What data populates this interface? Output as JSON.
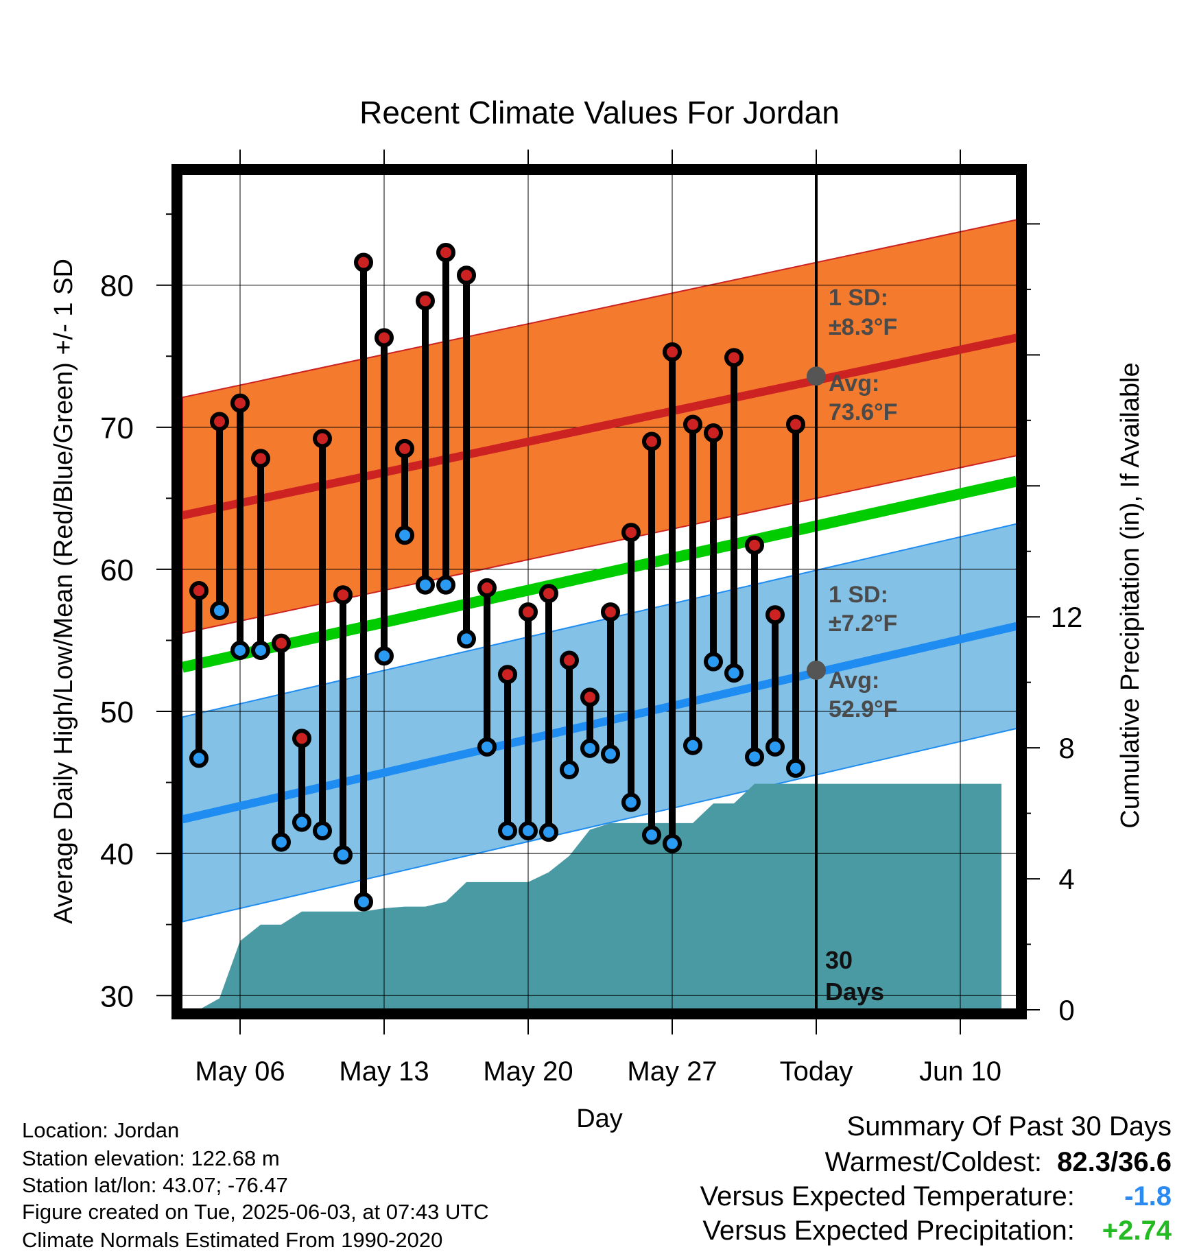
{
  "chart_data": {
    "type": "range",
    "title": "Recent Climate Values For Jordan",
    "xlabel": "Day",
    "ylabel": "Average Daily High/Low/Mean (Red/Blue/Green) +/- 1 SD",
    "y2label": "Cumulative Precipitation (in), If Available",
    "xticks": [
      "May 06",
      "May 13",
      "May 20",
      "May 27",
      "Today",
      "Jun 10"
    ],
    "yticks": [
      30,
      40,
      50,
      60,
      70,
      80
    ],
    "y2ticks": [
      0,
      4,
      8,
      12
    ],
    "ylim": [
      29,
      88
    ],
    "y2lim": [
      0,
      25.6
    ],
    "days": [
      "May 04",
      "May 05",
      "May 06",
      "May 07",
      "May 08",
      "May 09",
      "May 10",
      "May 11",
      "May 12",
      "May 13",
      "May 14",
      "May 15",
      "May 16",
      "May 17",
      "May 18",
      "May 19",
      "May 20",
      "May 21",
      "May 22",
      "May 23",
      "May 24",
      "May 25",
      "May 26",
      "May 27",
      "May 28",
      "May 29",
      "May 30",
      "May 31",
      "Jun 01",
      "Jun 02"
    ],
    "highs": [
      58.5,
      70.4,
      71.7,
      67.8,
      54.8,
      48.1,
      69.2,
      58.2,
      81.6,
      76.3,
      68.5,
      78.9,
      82.3,
      80.7,
      58.7,
      52.6,
      57.0,
      58.3,
      53.6,
      51.0,
      57.0,
      62.6,
      69.0,
      75.3,
      70.2,
      69.6,
      74.9,
      61.7,
      56.8,
      70.2
    ],
    "lows": [
      46.7,
      57.1,
      54.3,
      54.3,
      40.8,
      42.2,
      41.6,
      39.9,
      36.6,
      53.9,
      62.4,
      58.9,
      58.9,
      55.1,
      47.5,
      41.6,
      41.6,
      41.5,
      45.9,
      47.4,
      47.0,
      43.6,
      41.3,
      40.7,
      47.6,
      53.5,
      52.7,
      46.8,
      47.5,
      46.0
    ],
    "normal_high_avg": {
      "start": 63.8,
      "end": 76.3
    },
    "normal_high_sd": 8.3,
    "normal_low_avg": {
      "start": 42.4,
      "end": 56.0
    },
    "normal_low_sd": 7.2,
    "normal_mean": {
      "start": 53.1,
      "end": 66.2
    },
    "precip_cumulative": {
      "days": [
        "May 03",
        "May 04",
        "May 05",
        "May 06",
        "May 07",
        "May 08",
        "May 09",
        "May 10",
        "May 11",
        "May 12",
        "May 13",
        "May 14",
        "May 15",
        "May 16",
        "May 17",
        "May 18",
        "May 19",
        "May 20",
        "May 21",
        "May 22",
        "May 23",
        "May 24",
        "May 25",
        "May 26",
        "May 27",
        "May 28",
        "May 29",
        "May 30",
        "May 31",
        "Jun 01",
        "Jun 02",
        "Jun 03",
        "Jun 12"
      ],
      "values": [
        0.0,
        0.0,
        0.35,
        2.1,
        2.6,
        2.6,
        3.0,
        3.0,
        3.0,
        3.0,
        3.1,
        3.15,
        3.15,
        3.3,
        3.9,
        3.9,
        3.9,
        3.9,
        4.2,
        4.7,
        5.5,
        5.7,
        5.7,
        5.7,
        5.7,
        5.7,
        6.3,
        6.3,
        6.9,
        6.9,
        6.9,
        6.9,
        6.9
      ]
    },
    "today_label": "Today",
    "high_annotation": {
      "sd": "1 SD:",
      "sd_value": "±8.3°F",
      "avg": "Avg:",
      "avg_value": "73.6°F",
      "value": 73.6
    },
    "low_annotation": {
      "sd": "1 SD:",
      "sd_value": "±7.2°F",
      "avg": "Avg:",
      "avg_value": "52.9°F",
      "value": 52.9
    },
    "window_label": [
      "30",
      "Days"
    ],
    "colors": {
      "high_band": "#f47a2e",
      "high_line": "#cc2222",
      "low_band": "#83c1e6",
      "low_line": "#1e8cf0",
      "mean_line": "#00cc00",
      "precip": "#4a9aa4",
      "high_dot": "#cc2222",
      "low_dot": "#2a9af2"
    }
  },
  "info": {
    "location": "Location: Jordan",
    "elevation": "Station elevation: 122.68 m",
    "latlon": "Station lat/lon: 43.07; -76.47",
    "created": "Figure created on Tue, 2025-06-03, at 07:43 UTC",
    "normals": "Climate Normals Estimated From 1990-2020"
  },
  "summary": {
    "title": "Summary Of Past 30 Days",
    "warm_cold_label": "Warmest/Coldest:",
    "warm_cold_value": "82.3/36.6",
    "temp_label": "Versus Expected Temperature:",
    "temp_value": "-1.8",
    "temp_color": "#2a8af2",
    "precip_label": "Versus Expected Precipitation:",
    "precip_value": "+2.74",
    "precip_color": "#22bb22"
  }
}
